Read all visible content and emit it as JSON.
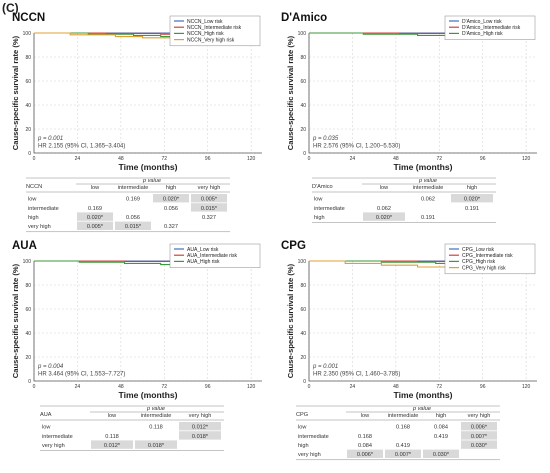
{
  "figure_label": "(C)",
  "chart_data": [
    {
      "type": "line",
      "title": "NCCN",
      "xlabel": "Time (months)",
      "ylabel": "Cause-specific survival rate (%)",
      "xlim": [
        0,
        126
      ],
      "ylim": [
        0,
        100
      ],
      "xticks": [
        0,
        24,
        48,
        72,
        96,
        120
      ],
      "yticks": [
        0,
        20,
        40,
        60,
        80,
        100
      ],
      "grid": true,
      "legend_position": "top-right",
      "p_text": "p = 0.001",
      "hr_text": "HR 2.155 (95% CI, 1.365–3.404)",
      "series": [
        {
          "name": "NCCN_Low risk",
          "color": "#3f6fbf",
          "x": [
            0,
            120
          ],
          "y": [
            100,
            100
          ]
        },
        {
          "name": "NCCN_Intermediate risk",
          "color": "#d43d3d",
          "x": [
            0,
            40,
            70,
            100,
            120
          ],
          "y": [
            100,
            99.6,
            99,
            98.6,
            98.4
          ]
        },
        {
          "name": "NCCN_High risk",
          "color": "#3a9a3a",
          "x": [
            0,
            30,
            55,
            70,
            90,
            105,
            120
          ],
          "y": [
            100,
            99,
            98,
            97,
            96,
            95.5,
            95.5
          ]
        },
        {
          "name": "NCCN_Very high risk",
          "color": "#e0a030",
          "x": [
            0,
            20,
            45,
            60,
            80,
            100,
            120
          ],
          "y": [
            100,
            98.5,
            97,
            96,
            95,
            94.5,
            94.5
          ]
        }
      ]
    },
    {
      "type": "line",
      "title": "D'Amico",
      "xlabel": "Time (months)",
      "ylabel": "Cause-specific survival rate (%)",
      "xlim": [
        0,
        126
      ],
      "ylim": [
        0,
        100
      ],
      "xticks": [
        0,
        24,
        48,
        72,
        96,
        120
      ],
      "yticks": [
        0,
        20,
        40,
        60,
        80,
        100
      ],
      "grid": true,
      "legend_position": "top-right",
      "p_text": "p = 0.035",
      "hr_text": "HR 2.576 (95% CI, 1.200–5.530)",
      "series": [
        {
          "name": "D'Amico_Low risk",
          "color": "#3f6fbf",
          "x": [
            0,
            120
          ],
          "y": [
            100,
            100
          ]
        },
        {
          "name": "D'Amico_Intermediate risk",
          "color": "#d43d3d",
          "x": [
            0,
            50,
            90,
            120
          ],
          "y": [
            100,
            99.6,
            99.2,
            99
          ]
        },
        {
          "name": "D'Amico_High risk",
          "color": "#3a9a3a",
          "x": [
            0,
            30,
            60,
            80,
            95,
            110,
            120
          ],
          "y": [
            100,
            99,
            98,
            97.5,
            96,
            95,
            95
          ]
        }
      ]
    },
    {
      "type": "line",
      "title": "AUA",
      "xlabel": "Time (months)",
      "ylabel": "Cause-specific survival rate (%)",
      "xlim": [
        0,
        126
      ],
      "ylim": [
        0,
        100
      ],
      "xticks": [
        0,
        24,
        48,
        72,
        96,
        120
      ],
      "yticks": [
        0,
        20,
        40,
        60,
        80,
        100
      ],
      "grid": true,
      "legend_position": "top-right",
      "p_text": "p = 0.004",
      "hr_text": "HR 3.464 (95% CI, 1.553–7.727)",
      "series": [
        {
          "name": "AUA_Low risk",
          "color": "#3f6fbf",
          "x": [
            0,
            120
          ],
          "y": [
            100,
            100
          ]
        },
        {
          "name": "AUA_Intermediate risk",
          "color": "#d43d3d",
          "x": [
            0,
            50,
            90,
            120
          ],
          "y": [
            100,
            99.6,
            99.3,
            99.2
          ]
        },
        {
          "name": "AUA_High risk",
          "color": "#3a9a3a",
          "x": [
            0,
            25,
            50,
            70,
            90,
            105,
            120
          ],
          "y": [
            100,
            99,
            98,
            97,
            96.3,
            95.5,
            95
          ]
        }
      ]
    },
    {
      "type": "line",
      "title": "CPG",
      "xlabel": "Time (months)",
      "ylabel": "Cause-specific survival rate (%)",
      "xlim": [
        0,
        126
      ],
      "ylim": [
        0,
        100
      ],
      "xticks": [
        0,
        24,
        48,
        72,
        96,
        120
      ],
      "yticks": [
        0,
        20,
        40,
        60,
        80,
        100
      ],
      "grid": true,
      "legend_position": "top-right",
      "p_text": "p = 0.001",
      "hr_text": "HR 2.350 (95% CI, 1.460–3.785)",
      "series": [
        {
          "name": "CPG_Low risk",
          "color": "#3f6fbf",
          "x": [
            0,
            120
          ],
          "y": [
            100,
            100
          ]
        },
        {
          "name": "CPG_Intermediate risk",
          "color": "#d43d3d",
          "x": [
            0,
            60,
            100,
            120
          ],
          "y": [
            100,
            99.6,
            99.2,
            99
          ]
        },
        {
          "name": "CPG_High risk",
          "color": "#3a9a3a",
          "x": [
            0,
            40,
            70,
            100,
            120
          ],
          "y": [
            100,
            99,
            98,
            97.3,
            97
          ]
        },
        {
          "name": "CPG_Very high risk",
          "color": "#e0a030",
          "x": [
            0,
            20,
            40,
            60,
            80,
            100,
            120
          ],
          "y": [
            100,
            98,
            96.5,
            95,
            93.5,
            92,
            92
          ]
        }
      ]
    }
  ],
  "tables": [
    {
      "name": "NCCN",
      "header_group": "p value",
      "columns": [
        "low",
        "intermediate",
        "high",
        "very high"
      ],
      "rows": [
        {
          "label": "low",
          "cells": [
            "",
            "0.169",
            "0.020*",
            "0.005*"
          ],
          "shaded": [
            false,
            false,
            true,
            true
          ]
        },
        {
          "label": "intermediate",
          "cells": [
            "0.169",
            "",
            "0.056",
            "0.015*"
          ],
          "shaded": [
            false,
            false,
            false,
            true
          ]
        },
        {
          "label": "high",
          "cells": [
            "0.020*",
            "0.056",
            "",
            "0.327"
          ],
          "shaded": [
            true,
            false,
            false,
            false
          ]
        },
        {
          "label": "very high",
          "cells": [
            "0.005*",
            "0.015*",
            "0.327",
            ""
          ],
          "shaded": [
            true,
            true,
            false,
            false
          ]
        }
      ]
    },
    {
      "name": "D'Amico",
      "header_group": "p value",
      "columns": [
        "low",
        "intermediate",
        "high"
      ],
      "rows": [
        {
          "label": "low",
          "cells": [
            "",
            "0.062",
            "0.020*"
          ],
          "shaded": [
            false,
            false,
            true
          ]
        },
        {
          "label": "intermediate",
          "cells": [
            "0.062",
            "",
            "0.191"
          ],
          "shaded": [
            false,
            false,
            false
          ]
        },
        {
          "label": "high",
          "cells": [
            "0.020*",
            "0.191",
            ""
          ],
          "shaded": [
            true,
            false,
            false
          ]
        }
      ]
    },
    {
      "name": "AUA",
      "header_group": "p value",
      "columns": [
        "low",
        "intermediate",
        "very high"
      ],
      "rows": [
        {
          "label": "low",
          "cells": [
            "",
            "0.118",
            "0.012*"
          ],
          "shaded": [
            false,
            false,
            true
          ]
        },
        {
          "label": "intermediate",
          "cells": [
            "0.118",
            "",
            "0.018*"
          ],
          "shaded": [
            false,
            false,
            true
          ]
        },
        {
          "label": "very high",
          "cells": [
            "0.012*",
            "0.018*",
            ""
          ],
          "shaded": [
            true,
            true,
            false
          ]
        }
      ]
    },
    {
      "name": "CPG",
      "header_group": "p value",
      "columns": [
        "low",
        "intermediate",
        "high",
        "very high"
      ],
      "rows": [
        {
          "label": "low",
          "cells": [
            "",
            "0.168",
            "0.084",
            "0.006*"
          ],
          "shaded": [
            false,
            false,
            false,
            true
          ]
        },
        {
          "label": "intermediate",
          "cells": [
            "0.168",
            "",
            "0.419",
            "0.007*"
          ],
          "shaded": [
            false,
            false,
            false,
            true
          ]
        },
        {
          "label": "high",
          "cells": [
            "0.084",
            "0.419",
            "",
            "0.030*"
          ],
          "shaded": [
            false,
            false,
            false,
            true
          ]
        },
        {
          "label": "very high",
          "cells": [
            "0.006*",
            "0.007*",
            "0.030*",
            ""
          ],
          "shaded": [
            true,
            true,
            true,
            false
          ]
        }
      ]
    }
  ]
}
